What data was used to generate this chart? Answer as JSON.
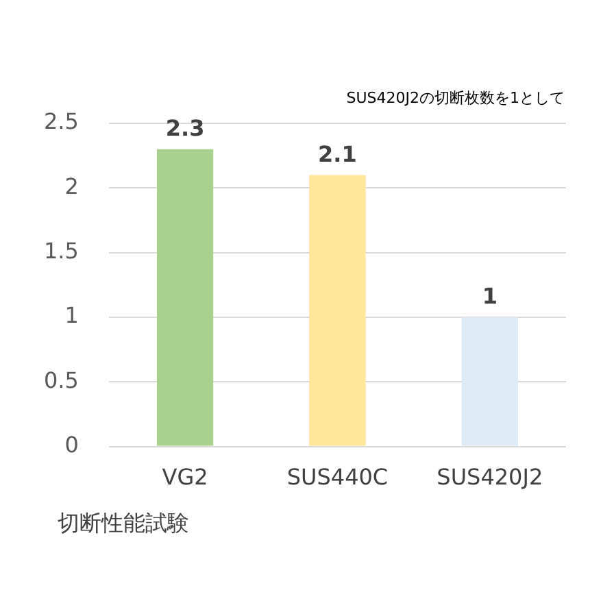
{
  "chart_data": {
    "type": "bar",
    "categories": [
      "VG2",
      "SUS440C",
      "SUS420J2"
    ],
    "values": [
      2.3,
      2.1,
      1
    ],
    "colors": [
      "#a9d18e",
      "#ffe699",
      "#deebf7"
    ],
    "ylim": [
      0,
      2.5
    ],
    "yticks": [
      0,
      0.5,
      1,
      1.5,
      2,
      2.5
    ],
    "grid": "y",
    "data_labels": true,
    "xlabel": "切断性能試験",
    "annotations": [
      "SUS420J2の切断枚数を1として"
    ]
  }
}
